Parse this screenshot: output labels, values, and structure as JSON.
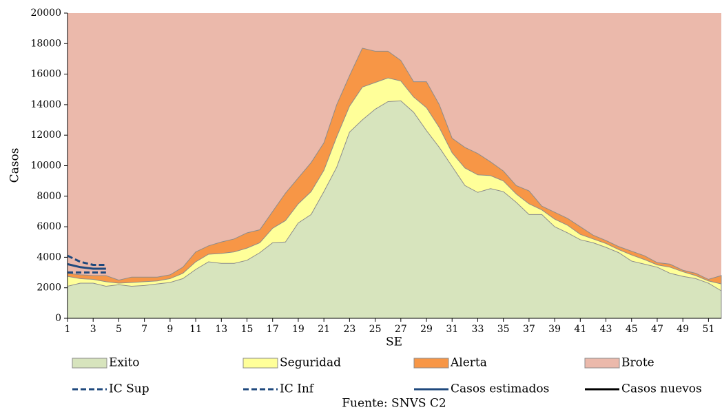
{
  "chart_data": {
    "type": "area",
    "y_label": "Casos",
    "x_label": "SE",
    "source": "Fuente: SNVS C2",
    "x": [
      1,
      2,
      3,
      4,
      5,
      6,
      7,
      8,
      9,
      10,
      11,
      12,
      13,
      14,
      15,
      16,
      17,
      18,
      19,
      20,
      21,
      22,
      23,
      24,
      25,
      26,
      27,
      28,
      29,
      30,
      31,
      32,
      33,
      34,
      35,
      36,
      37,
      38,
      39,
      40,
      41,
      42,
      43,
      44,
      45,
      46,
      47,
      48,
      49,
      50,
      51,
      52
    ],
    "xlim": [
      1,
      52
    ],
    "xticks": [
      1,
      3,
      5,
      7,
      9,
      11,
      13,
      15,
      17,
      19,
      21,
      23,
      25,
      27,
      29,
      31,
      33,
      35,
      37,
      39,
      41,
      43,
      45,
      47,
      49,
      51
    ],
    "ylim": [
      0,
      20000
    ],
    "yticks": [
      0,
      2000,
      4000,
      6000,
      8000,
      10000,
      12000,
      14000,
      16000,
      18000,
      20000
    ],
    "series": [
      {
        "name": "Exito",
        "color": "#d7e4bd",
        "style": "area",
        "values": [
          2100,
          2300,
          2300,
          2100,
          2200,
          2100,
          2150,
          2250,
          2350,
          2600,
          3200,
          3700,
          3600,
          3600,
          3800,
          4300,
          4950,
          5000,
          6250,
          6800,
          8300,
          9900,
          12200,
          13000,
          13700,
          14200,
          14250,
          13500,
          12300,
          11200,
          9950,
          8700,
          8250,
          8500,
          8300,
          7600,
          6800,
          6800,
          6000,
          5600,
          5150,
          4950,
          4650,
          4300,
          3750,
          3550,
          3350,
          2950,
          2750,
          2600,
          2300,
          1800
        ]
      },
      {
        "name": "Seguridad",
        "color": "#ffff99",
        "style": "area",
        "values": [
          2750,
          2600,
          2550,
          2400,
          2300,
          2350,
          2400,
          2450,
          2600,
          2950,
          3700,
          4200,
          4250,
          4350,
          4600,
          4950,
          5900,
          6400,
          7500,
          8300,
          9700,
          11900,
          13900,
          15150,
          15450,
          15750,
          15550,
          14500,
          13800,
          12500,
          10850,
          9850,
          9400,
          9350,
          9000,
          8150,
          7500,
          7100,
          6500,
          6100,
          5500,
          5200,
          4900,
          4500,
          4150,
          3850,
          3500,
          3350,
          3050,
          2800,
          2450,
          2250
        ]
      },
      {
        "name": "Alerta",
        "color": "#f79646",
        "style": "area",
        "values": [
          2950,
          2850,
          2800,
          2800,
          2500,
          2700,
          2700,
          2700,
          2850,
          3350,
          4350,
          4750,
          5000,
          5200,
          5600,
          5800,
          7000,
          8200,
          9200,
          10200,
          11500,
          14000,
          15900,
          17700,
          17500,
          17500,
          16900,
          15500,
          15500,
          14000,
          11800,
          11200,
          10800,
          10250,
          9650,
          8700,
          8350,
          7350,
          6950,
          6550,
          6000,
          5450,
          5100,
          4700,
          4400,
          4100,
          3650,
          3550,
          3150,
          2950,
          2550,
          2800
        ]
      },
      {
        "name": "Brote",
        "color": "#ebb9ab",
        "style": "area"
      },
      {
        "name": "IC Sup",
        "color": "#1f497d",
        "style": "dashed",
        "values": [
          4100,
          3700,
          3500,
          3500,
          null,
          null,
          null,
          null,
          null,
          null,
          null,
          null,
          null,
          null,
          null,
          null,
          null,
          null,
          null,
          null,
          null,
          null,
          null,
          null,
          null,
          null,
          null,
          null,
          null,
          null,
          null,
          null,
          null,
          null,
          null,
          null,
          null,
          null,
          null,
          null,
          null,
          null,
          null,
          null,
          null,
          null,
          null,
          null,
          null,
          null,
          null,
          null
        ]
      },
      {
        "name": "IC Inf",
        "color": "#1f497d",
        "style": "dashed",
        "values": [
          3000,
          3000,
          3000,
          3000,
          null,
          null,
          null,
          null,
          null,
          null,
          null,
          null,
          null,
          null,
          null,
          null,
          null,
          null,
          null,
          null,
          null,
          null,
          null,
          null,
          null,
          null,
          null,
          null,
          null,
          null,
          null,
          null,
          null,
          null,
          null,
          null,
          null,
          null,
          null,
          null,
          null,
          null,
          null,
          null,
          null,
          null,
          null,
          null,
          null,
          null,
          null,
          null
        ]
      },
      {
        "name": "Casos estimados",
        "color": "#1f497d",
        "style": "solid",
        "values": [
          3550,
          3350,
          3250,
          3250,
          null,
          null,
          null,
          null,
          null,
          null,
          null,
          null,
          null,
          null,
          null,
          null,
          null,
          null,
          null,
          null,
          null,
          null,
          null,
          null,
          null,
          null,
          null,
          null,
          null,
          null,
          null,
          null,
          null,
          null,
          null,
          null,
          null,
          null,
          null,
          null,
          null,
          null,
          null,
          null,
          null,
          null,
          null,
          null,
          null,
          null,
          null,
          null
        ]
      },
      {
        "name": "Casos nuevos",
        "color": "#000000",
        "style": "solid"
      }
    ]
  }
}
